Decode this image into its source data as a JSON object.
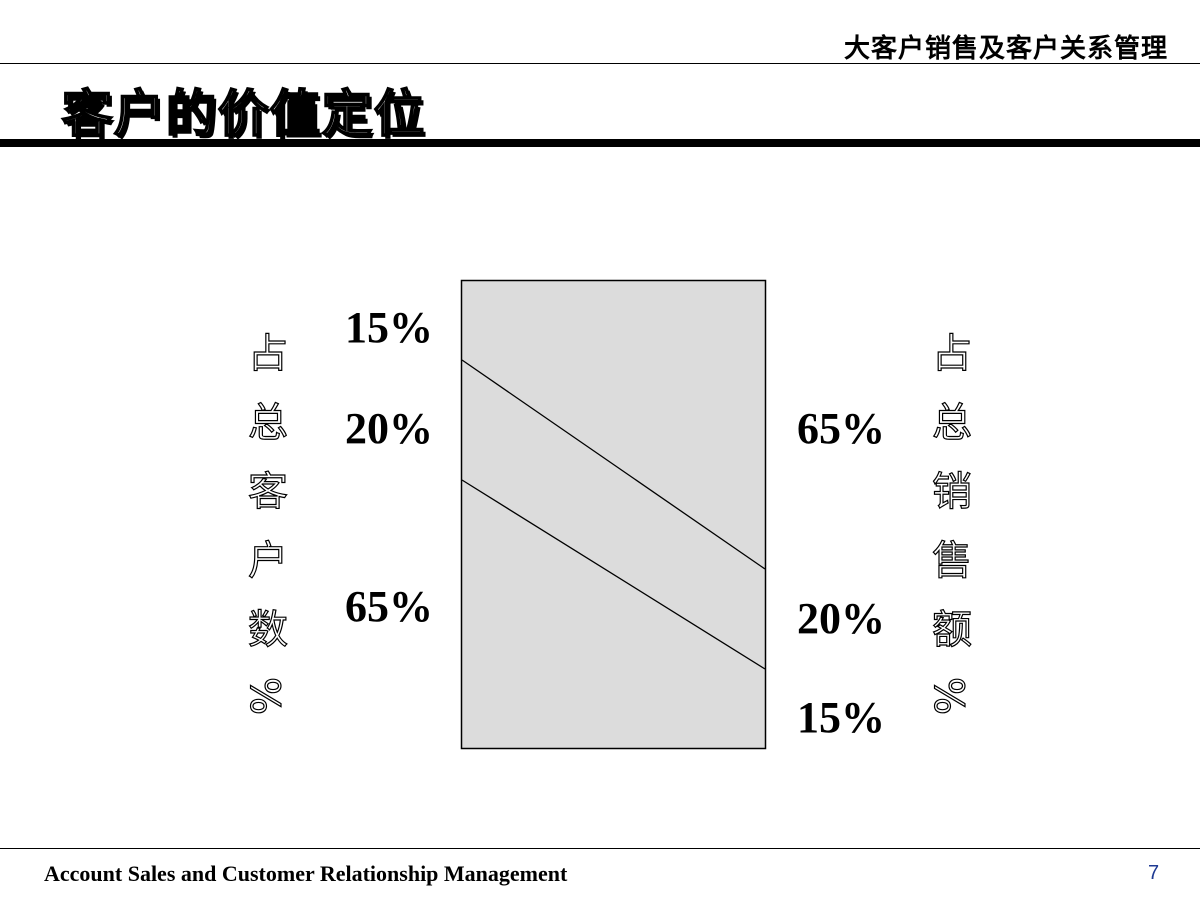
{
  "header": {
    "title": "大客户销售及客户关系管理"
  },
  "page": {
    "title": "客户的价值定位"
  },
  "diagram": {
    "left_label": "占总客户数%",
    "right_label": "占总销售额%",
    "left_percents": [
      "15%",
      "20%",
      "65%"
    ],
    "right_percents": [
      "65%",
      "20%",
      "15%"
    ],
    "box_fill": "#dcdcdc"
  },
  "footer": {
    "text": "Account Sales and Customer Relationship Management",
    "page_number": "7",
    "page_number_color": "#1f3a93"
  }
}
